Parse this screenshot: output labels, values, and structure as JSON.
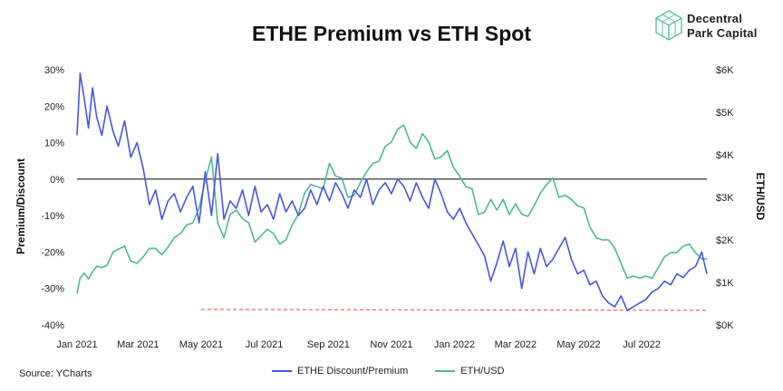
{
  "chart_data": {
    "type": "line",
    "title": "ETHE Premium vs ETH Spot",
    "ylabel_left": "Premium/Discount",
    "ylabel_right": "ETH/USD",
    "ylim_left": [
      -40,
      30
    ],
    "ylim_right": [
      0,
      6000
    ],
    "yticks_left": [
      "30%",
      "20%",
      "10%",
      "0%",
      "-10%",
      "-20%",
      "-30%",
      "-40%"
    ],
    "yticks_right": [
      "$6K",
      "$5K",
      "$4K",
      "$3K",
      "$2K",
      "$1K",
      "$0K"
    ],
    "xticks": [
      "Jan 2021",
      "Mar 2021",
      "May 2021",
      "Jul 2021",
      "Sep 2021",
      "Nov 2021",
      "Jan 2022",
      "Mar 2022",
      "May 2022",
      "Jul 2022"
    ],
    "grid": false,
    "legend_position": "bottom",
    "source": "Source: YCharts",
    "series": [
      {
        "name": "ETHE Discount/Premium",
        "color": "#4a56e2",
        "axis": "left",
        "x": [
          "2021-01-01",
          "2021-01-04",
          "2021-01-08",
          "2021-01-12",
          "2021-01-16",
          "2021-01-20",
          "2021-01-25",
          "2021-01-30",
          "2021-02-05",
          "2021-02-10",
          "2021-02-16",
          "2021-02-22",
          "2021-02-28",
          "2021-03-06",
          "2021-03-12",
          "2021-03-18",
          "2021-03-24",
          "2021-03-30",
          "2021-04-05",
          "2021-04-11",
          "2021-04-17",
          "2021-04-23",
          "2021-04-29",
          "2021-05-05",
          "2021-05-11",
          "2021-05-17",
          "2021-05-23",
          "2021-05-29",
          "2021-06-04",
          "2021-06-10",
          "2021-06-16",
          "2021-06-22",
          "2021-06-28",
          "2021-07-04",
          "2021-07-10",
          "2021-07-16",
          "2021-07-22",
          "2021-07-28",
          "2021-08-03",
          "2021-08-09",
          "2021-08-15",
          "2021-08-21",
          "2021-08-27",
          "2021-09-02",
          "2021-09-08",
          "2021-09-14",
          "2021-09-20",
          "2021-09-26",
          "2021-10-02",
          "2021-10-08",
          "2021-10-14",
          "2021-10-20",
          "2021-10-26",
          "2021-11-01",
          "2021-11-07",
          "2021-11-13",
          "2021-11-19",
          "2021-11-25",
          "2021-12-01",
          "2021-12-07",
          "2021-12-13",
          "2021-12-19",
          "2021-12-25",
          "2021-12-31",
          "2022-01-06",
          "2022-01-12",
          "2022-01-18",
          "2022-01-24",
          "2022-01-30",
          "2022-02-05",
          "2022-02-11",
          "2022-02-17",
          "2022-02-23",
          "2022-03-01",
          "2022-03-07",
          "2022-03-13",
          "2022-03-19",
          "2022-03-25",
          "2022-03-31",
          "2022-04-06",
          "2022-04-12",
          "2022-04-18",
          "2022-04-24",
          "2022-04-30",
          "2022-05-06",
          "2022-05-12",
          "2022-05-18",
          "2022-05-24",
          "2022-05-30",
          "2022-06-05",
          "2022-06-11",
          "2022-06-17",
          "2022-06-23",
          "2022-06-29",
          "2022-07-05",
          "2022-07-11",
          "2022-07-17",
          "2022-07-23",
          "2022-07-29",
          "2022-08-04",
          "2022-08-10",
          "2022-08-16",
          "2022-08-22",
          "2022-08-28",
          "2022-09-02"
        ],
        "values": [
          12,
          29,
          22,
          14,
          25,
          17,
          12,
          20,
          13,
          9,
          16,
          6,
          10,
          3,
          -7,
          -3,
          -11,
          -6,
          -4,
          -9,
          -5,
          -2,
          -12,
          2,
          -10,
          7,
          -11,
          -6,
          -8,
          -3,
          -10,
          -2,
          -9,
          -7,
          -11,
          -4,
          -9,
          -6,
          -10,
          -8,
          -3,
          -7,
          -2,
          -6,
          -1,
          -4,
          -8,
          -3,
          -5,
          0,
          -7,
          -3,
          -1,
          -4,
          0,
          -2,
          -6,
          -1,
          -5,
          -8,
          0,
          -4,
          -9,
          -11,
          -8,
          -12,
          -15,
          -18,
          -21,
          -28,
          -23,
          -17,
          -24,
          -19,
          -30,
          -20,
          -26,
          -19,
          -24,
          -22,
          -19,
          -16,
          -22,
          -26,
          -25,
          -29,
          -28,
          -32,
          -34,
          -35,
          -32,
          -36,
          -35,
          -34,
          -33,
          -31,
          -30,
          -28,
          -29,
          -26,
          -27,
          -25,
          -24,
          -20,
          -26
        ]
      },
      {
        "name": "ETH/USD",
        "color": "#4fb89a",
        "axis": "right",
        "x": [
          "2021-01-01",
          "2021-01-04",
          "2021-01-08",
          "2021-01-12",
          "2021-01-16",
          "2021-01-20",
          "2021-01-25",
          "2021-01-30",
          "2021-02-05",
          "2021-02-10",
          "2021-02-16",
          "2021-02-22",
          "2021-02-28",
          "2021-03-06",
          "2021-03-12",
          "2021-03-18",
          "2021-03-24",
          "2021-03-30",
          "2021-04-05",
          "2021-04-11",
          "2021-04-17",
          "2021-04-23",
          "2021-04-29",
          "2021-05-05",
          "2021-05-11",
          "2021-05-17",
          "2021-05-23",
          "2021-05-29",
          "2021-06-04",
          "2021-06-10",
          "2021-06-16",
          "2021-06-22",
          "2021-06-28",
          "2021-07-04",
          "2021-07-10",
          "2021-07-16",
          "2021-07-22",
          "2021-07-28",
          "2021-08-03",
          "2021-08-09",
          "2021-08-15",
          "2021-08-21",
          "2021-08-27",
          "2021-09-02",
          "2021-09-08",
          "2021-09-14",
          "2021-09-20",
          "2021-09-26",
          "2021-10-02",
          "2021-10-08",
          "2021-10-14",
          "2021-10-20",
          "2021-10-26",
          "2021-11-01",
          "2021-11-07",
          "2021-11-13",
          "2021-11-19",
          "2021-11-25",
          "2021-12-01",
          "2021-12-07",
          "2021-12-13",
          "2021-12-19",
          "2021-12-25",
          "2021-12-31",
          "2022-01-06",
          "2022-01-12",
          "2022-01-18",
          "2022-01-24",
          "2022-01-30",
          "2022-02-05",
          "2022-02-11",
          "2022-02-17",
          "2022-02-23",
          "2022-03-01",
          "2022-03-07",
          "2022-03-13",
          "2022-03-19",
          "2022-03-25",
          "2022-03-31",
          "2022-04-06",
          "2022-04-12",
          "2022-04-18",
          "2022-04-24",
          "2022-04-30",
          "2022-05-06",
          "2022-05-12",
          "2022-05-18",
          "2022-05-24",
          "2022-05-30",
          "2022-06-05",
          "2022-06-11",
          "2022-06-17",
          "2022-06-23",
          "2022-06-29",
          "2022-07-05",
          "2022-07-11",
          "2022-07-17",
          "2022-07-23",
          "2022-07-29",
          "2022-08-04",
          "2022-08-10",
          "2022-08-16",
          "2022-08-22",
          "2022-08-28",
          "2022-09-02"
        ],
        "values": [
          740,
          1100,
          1220,
          1080,
          1250,
          1380,
          1350,
          1400,
          1720,
          1780,
          1850,
          1500,
          1450,
          1600,
          1800,
          1800,
          1650,
          1830,
          2050,
          2150,
          2350,
          2400,
          2750,
          3400,
          3950,
          2400,
          2050,
          2600,
          2700,
          2500,
          2400,
          1950,
          2100,
          2250,
          2150,
          1900,
          2000,
          2350,
          2600,
          3100,
          3300,
          3250,
          3200,
          3800,
          3500,
          3450,
          3000,
          3050,
          3350,
          3600,
          3800,
          3850,
          4200,
          4300,
          4600,
          4700,
          4300,
          4150,
          4500,
          4300,
          3900,
          3950,
          4100,
          3700,
          3500,
          3250,
          3200,
          2600,
          2650,
          2950,
          2700,
          2950,
          2600,
          2850,
          2600,
          2550,
          2800,
          3100,
          3300,
          3450,
          3000,
          3050,
          2950,
          2800,
          2750,
          2300,
          2050,
          2000,
          2000,
          1800,
          1450,
          1100,
          1150,
          1100,
          1150,
          1100,
          1350,
          1600,
          1700,
          1700,
          1850,
          1900,
          1700,
          1550,
          1550
        ]
      }
    ],
    "threshold": {
      "value": -36,
      "axis": "left",
      "from": "2021-05-01",
      "to": "2022-09-02",
      "color": "#e2453d"
    }
  },
  "brand": {
    "name_line1": "Decentral",
    "name_line2": "Park Capital",
    "logo_icon": "cube-icon"
  }
}
